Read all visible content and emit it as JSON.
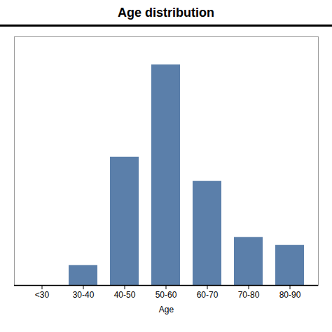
{
  "chart_data": {
    "type": "bar",
    "title": "Age distribution",
    "xlabel": "Age",
    "categories": [
      "<30",
      "30-40",
      "40-50",
      "50-60",
      "60-70",
      "70-80",
      "80-90"
    ],
    "values": [
      0,
      5,
      32,
      55,
      26,
      12,
      10
    ],
    "color": "#5b7faa",
    "ylim": [
      0,
      62
    ],
    "yticks": [],
    "grid": false,
    "tick_labels": "x"
  }
}
